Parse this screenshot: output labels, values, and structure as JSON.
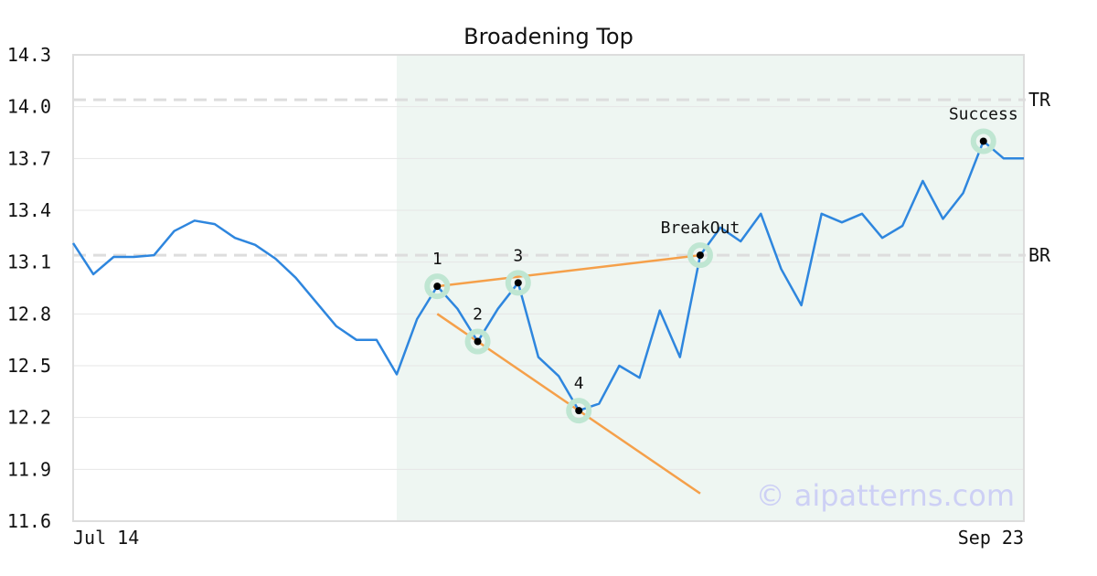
{
  "chart_data": {
    "type": "line",
    "title": "Broadening Top",
    "xlabel": "",
    "ylabel": "",
    "x_tick_labels": [
      "Jul 14",
      "Sep 23"
    ],
    "y_ticks": [
      "14.3",
      "14.0",
      "13.7",
      "13.4",
      "13.1",
      "12.8",
      "12.5",
      "12.2",
      "11.9",
      "11.6"
    ],
    "ylim": [
      11.6,
      14.3
    ],
    "grid": "horizontal",
    "colors": {
      "price": "#2e86de",
      "trendline": "#f5a04a",
      "marker_halo": "#bfe6d2",
      "pattern_region": "#eef6f2",
      "reference_line": "#dddddd",
      "watermark": "#cdd0f5"
    },
    "series": [
      {
        "values": [
          13.21,
          13.03,
          13.13,
          13.13,
          13.14,
          13.28,
          13.34,
          13.32,
          13.24,
          13.2,
          13.12,
          13.01,
          12.87,
          12.73,
          12.65,
          12.65,
          12.45,
          12.77,
          12.96,
          12.83,
          12.64,
          12.83,
          12.98,
          12.55,
          12.44,
          12.24,
          12.28,
          12.5,
          12.43,
          12.82,
          12.55,
          13.14,
          13.3,
          13.22,
          13.38,
          13.06,
          12.85,
          13.38,
          13.33,
          13.38,
          13.24,
          13.31,
          13.57,
          13.35,
          13.5,
          13.8,
          13.7,
          13.7
        ]
      }
    ],
    "pattern_region": {
      "start_index": 16,
      "end_index": 47
    },
    "reference_lines": [
      {
        "label": "TR",
        "value": 14.04
      },
      {
        "label": "BR",
        "value": 13.14
      }
    ],
    "trendlines": [
      {
        "from": {
          "index": 18,
          "value": 12.96
        },
        "to": {
          "index": 31,
          "value": 13.14
        }
      },
      {
        "from": {
          "index": 18,
          "value": 12.8
        },
        "to": {
          "index": 31,
          "value": 11.76
        }
      }
    ],
    "markers": [
      {
        "label": "1",
        "index": 18,
        "value": 12.96
      },
      {
        "label": "2",
        "index": 20,
        "value": 12.64
      },
      {
        "label": "3",
        "index": 22,
        "value": 12.98
      },
      {
        "label": "4",
        "index": 25,
        "value": 12.24
      },
      {
        "label": "BreakOut",
        "index": 31,
        "value": 13.14
      },
      {
        "label": "Success",
        "index": 45,
        "value": 13.8
      }
    ],
    "watermark": "© aipatterns.com"
  }
}
